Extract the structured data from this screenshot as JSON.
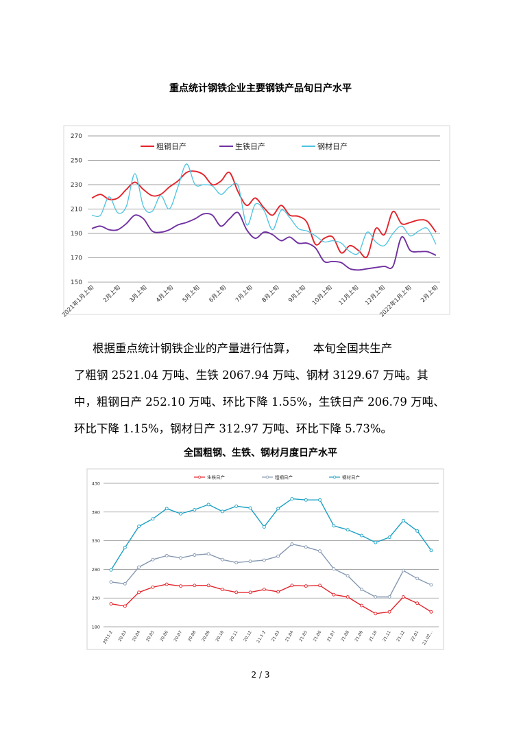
{
  "chart1": {
    "title": "重点统计钢铁企业主要钢铁产品旬日产水平",
    "chart_data": {
      "type": "line",
      "title": "重点统计钢铁企业主要钢铁产品旬日产水平",
      "ylim": [
        150,
        270
      ],
      "yticks": [
        "270",
        "250",
        "230",
        "210",
        "190",
        "170",
        "150"
      ],
      "xticks": [
        "2021年1月上旬",
        "2月上旬",
        "3月上旬",
        "4月上旬",
        "5月上旬",
        "6月上旬",
        "7月上旬",
        "8月上旬",
        "9月上旬",
        "10月上旬",
        "11月上旬",
        "12月上旬",
        "2022年1月上旬",
        "2月上旬"
      ],
      "series": [
        {
          "name": "粗钢日产",
          "color": "#e3232a",
          "values": [
            219,
            222,
            218,
            219,
            226,
            232,
            226,
            221,
            222,
            228,
            233,
            240,
            241,
            238,
            230,
            233,
            240,
            224,
            213,
            219,
            211,
            205,
            213,
            205,
            204,
            199,
            181,
            186,
            187,
            174,
            180,
            176,
            171,
            194,
            189,
            208,
            198,
            199,
            201,
            200,
            191
          ]
        },
        {
          "name": "生铁日产",
          "color": "#7030a0",
          "values": [
            194,
            196,
            193,
            193,
            198,
            205,
            202,
            192,
            191,
            193,
            197,
            199,
            202,
            206,
            205,
            196,
            202,
            207,
            193,
            186,
            191,
            189,
            184,
            187,
            182,
            182,
            178,
            167,
            167,
            166,
            161,
            160,
            161,
            162,
            163,
            163,
            187,
            176,
            175,
            175,
            172
          ]
        },
        {
          "name": "钢材日产",
          "color": "#4bc3e0",
          "values": [
            205,
            205,
            220,
            207,
            212,
            239,
            212,
            208,
            221,
            210,
            228,
            247,
            230,
            230,
            229,
            222,
            228,
            229,
            197,
            214,
            209,
            193,
            209,
            203,
            194,
            192,
            188,
            183,
            184,
            182,
            175,
            174,
            191,
            183,
            180,
            190,
            196,
            188,
            192,
            194,
            181
          ]
        }
      ]
    }
  },
  "paragraph": {
    "line1": "根据重点统计钢铁企业的产量进行估算，　　本旬全国共生产",
    "line2": "了粗钢 2521.04 万吨、生铁 2067.94 万吨、钢材 3129.67 万吨。其",
    "line3": "中，粗钢日产 252.10 万吨、环比下降 1.55%，生铁日产 206.79 万吨、",
    "line4": "环比下降 1.15%，钢材日产 312.97 万吨、环比下降 5.73%。"
  },
  "chart2": {
    "title": "全国粗钢、生铁、钢材月度日产水平",
    "chart_data": {
      "type": "line",
      "title": "全国粗钢、生铁、钢材月度日产水平",
      "ylim": [
        180,
        430
      ],
      "yticks": [
        "430",
        "380",
        "330",
        "280",
        "230",
        "180"
      ],
      "xticks": [
        "2011-2",
        "20.03",
        "20.04",
        "20.05",
        "20.06",
        "20.07",
        "20.08",
        "20.09",
        "20.10",
        "20.11",
        "20.12",
        "21.1-2",
        "21.03",
        "21.04",
        "21.05",
        "21.06",
        "21.07",
        "21.08",
        "21.09",
        "21.10",
        "21.11",
        "21.12",
        "22.01",
        "22.02..."
      ],
      "series": [
        {
          "name": "生铁日产",
          "color": "#e3232a",
          "values": [
            220,
            216,
            240,
            249,
            254,
            251,
            252,
            252,
            245,
            240,
            240,
            245,
            241,
            252,
            251,
            252,
            236,
            232,
            217,
            203,
            206,
            232,
            221,
            206
          ]
        },
        {
          "name": "粗钢日产",
          "color": "#8497b0",
          "values": [
            258,
            255,
            284,
            297,
            304,
            300,
            305,
            307,
            297,
            292,
            294,
            296,
            303,
            324,
            319,
            312,
            281,
            269,
            245,
            232,
            232,
            278,
            264,
            253
          ]
        },
        {
          "name": "钢材日产",
          "color": "#1aa0c4",
          "values": [
            279,
            318,
            355,
            368,
            386,
            377,
            384,
            393,
            381,
            390,
            387,
            354,
            386,
            403,
            401,
            401,
            356,
            349,
            339,
            327,
            336,
            365,
            347,
            313
          ]
        }
      ]
    }
  },
  "footer": {
    "page": "2 / 3"
  }
}
